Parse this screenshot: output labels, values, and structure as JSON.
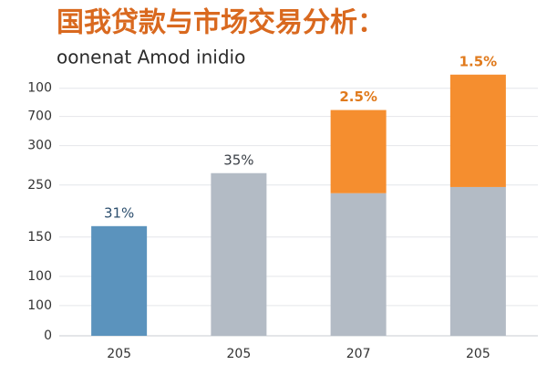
{
  "chart_data": {
    "type": "stacked_bar",
    "title": "国我贷款与市场交易分析：",
    "subtitle": "oonenat Amod inidio",
    "categories": [
      "205",
      "205",
      "207",
      "205"
    ],
    "series": [
      {
        "colors": [
          "#5b93bd",
          "#b3bbc5",
          "#b3bbc5",
          "#b3bbc5"
        ],
        "values": [
          44.3,
          65.7,
          57.6,
          60.1
        ],
        "value_labels": [
          "31%",
          "35%",
          null,
          null
        ],
        "label_colors": [
          "#2d4f6e",
          "#3a3f46",
          null,
          null
        ]
      },
      {
        "color": "#f58e2f",
        "values": [
          null,
          null,
          33.6,
          45.4
        ],
        "value_labels": [
          null,
          null,
          "2.5%",
          "1.5%"
        ],
        "label_color": "#e07a1c"
      }
    ],
    "ylim": [
      0,
      108
    ],
    "yticks": [
      0,
      {
        "value": 12.2,
        "label": "100"
      },
      {
        "value": 24,
        "label": "100"
      },
      {
        "value": 39.9,
        "label": "150"
      },
      {
        "value": 60.9,
        "label": "250"
      },
      {
        "value": 76.8,
        "label": "300"
      },
      {
        "value": 88.6,
        "label": "700"
      },
      100
    ],
    "grid": true,
    "title_color": "#d9691f"
  }
}
